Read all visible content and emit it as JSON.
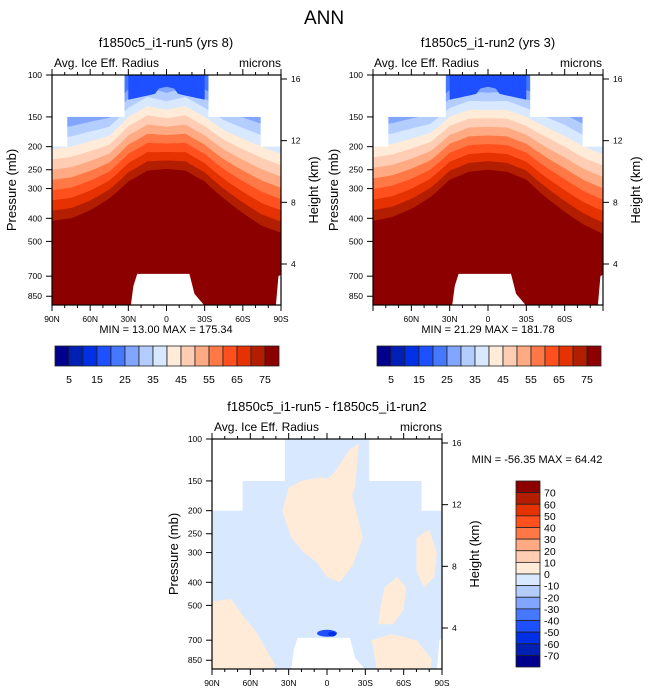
{
  "figure_title": "ANN",
  "chart_data": [
    {
      "type": "heatmap",
      "id": "run5",
      "title": "f1850c5_i1-run5 (yrs 8)",
      "left_label": "Avg. Ice Eff. Radius",
      "right_label": "microns",
      "ylabel": "Pressure (mb)",
      "ylabel_right": "Height (km)",
      "xlabel": "",
      "x_ticks": [
        "90N",
        "60N",
        "30N",
        "0",
        "30S",
        "60S",
        "90S"
      ],
      "x_tick_values": [
        90,
        60,
        30,
        0,
        -30,
        -60,
        -90
      ],
      "y_ticks": [
        100,
        150,
        200,
        250,
        300,
        400,
        500,
        700,
        850
      ],
      "y_ticks_right": [
        16,
        12,
        8,
        4
      ],
      "ylim": [
        1000,
        100
      ],
      "xlim": [
        90,
        -90
      ],
      "stats": "MIN =  13.00  MAX = 175.34",
      "min": 13.0,
      "max": 175.34,
      "colorbar": "absolute",
      "field": {
        "lat": [
          90,
          75,
          60,
          45,
          30,
          15,
          0,
          -15,
          -30,
          -45,
          -60,
          -75,
          -90
        ],
        "level_pressure_for_value_40": [
          205,
          200,
          190,
          180,
          150,
          135,
          140,
          135,
          150,
          170,
          185,
          200,
          215
        ],
        "level_pressure_for_value_75": [
          410,
          400,
          370,
          330,
          280,
          252,
          248,
          252,
          280,
          330,
          380,
          430,
          460
        ],
        "top_missing_above_mb": {
          "polar": 200,
          "midlat": 150,
          "tropics_edge_lat": [
            33,
            -33
          ]
        },
        "surface_missing_region_lat": [
          28,
          -38
        ],
        "surface_missing_top_mb": 665
      }
    },
    {
      "type": "heatmap",
      "id": "run2",
      "title": "f1850c5_i1-run2 (yrs 3)",
      "left_label": "Avg. Ice Eff. Radius",
      "right_label": "microns",
      "ylabel": "Pressure (mb)",
      "ylabel_right": "Height (km)",
      "xlabel": "",
      "x_ticks": [
        "60N",
        "30N",
        "0",
        "30S",
        "60S"
      ],
      "x_tick_values": [
        60,
        30,
        0,
        -30,
        -60
      ],
      "y_ticks": [
        100,
        150,
        200,
        250,
        300,
        400,
        500,
        700,
        850
      ],
      "y_ticks_right": [
        16,
        12,
        8,
        4
      ],
      "ylim": [
        1000,
        100
      ],
      "xlim": [
        90,
        -90
      ],
      "stats": "MIN =  21.29  MAX = 181.78",
      "min": 21.29,
      "max": 181.78,
      "colorbar": "absolute",
      "field": {
        "lat": [
          90,
          75,
          60,
          45,
          30,
          15,
          0,
          -15,
          -30,
          -45,
          -60,
          -75,
          -90
        ],
        "level_pressure_for_value_40": [
          200,
          195,
          185,
          175,
          150,
          140,
          140,
          140,
          150,
          165,
          180,
          200,
          215
        ],
        "level_pressure_for_value_75": [
          410,
          395,
          365,
          325,
          275,
          255,
          250,
          255,
          275,
          325,
          375,
          425,
          465
        ],
        "top_missing_above_mb": {
          "polar": 200,
          "midlat": 150,
          "tropics_edge_lat": [
            33,
            -33
          ]
        },
        "surface_missing_region_lat": [
          28,
          -38
        ],
        "surface_missing_top_mb": 665
      }
    },
    {
      "type": "heatmap",
      "id": "diff",
      "title": "f1850c5_i1-run5 - f1850c5_i1-run2",
      "left_label": "Avg. Ice Eff. Radius",
      "right_label": "microns",
      "ylabel": "Pressure (mb)",
      "ylabel_right": "Height (km)",
      "xlabel": "",
      "x_ticks": [
        "90N",
        "60N",
        "30N",
        "0",
        "30S",
        "60S",
        "90S"
      ],
      "x_tick_values": [
        90,
        60,
        30,
        0,
        -30,
        -60,
        -90
      ],
      "y_ticks": [
        100,
        150,
        200,
        250,
        300,
        400,
        500,
        700,
        850
      ],
      "y_ticks_right": [
        16,
        12,
        8,
        4
      ],
      "ylim": [
        1000,
        100
      ],
      "xlim": [
        90,
        -90
      ],
      "stats": "MIN = -56.35  MAX =  64.42",
      "min": -56.35,
      "max": 64.42,
      "colorbar": "difference",
      "field": {
        "dominant_values": [
          -10,
          0,
          10
        ],
        "note": "mostly within -10..10; small negative pocket (-40..-50) near 0 lat at ~660 mb"
      }
    }
  ],
  "colorbars": {
    "absolute": {
      "orientation": "horizontal",
      "levels": [
        5,
        10,
        15,
        20,
        25,
        30,
        35,
        40,
        45,
        50,
        55,
        60,
        65,
        70,
        75
      ],
      "labels": [
        "5",
        "15",
        "25",
        "35",
        "45",
        "55",
        "65",
        "75"
      ],
      "colors": [
        "#00008c",
        "#0020b4",
        "#0030e6",
        "#1e50ff",
        "#4678ff",
        "#82a5ff",
        "#b4cdff",
        "#d7e8ff",
        "#ffebd7",
        "#ffcdb4",
        "#ffaa82",
        "#ff7846",
        "#ff501e",
        "#e63200",
        "#b41e00",
        "#8c0000"
      ]
    },
    "difference": {
      "orientation": "vertical",
      "levels": [
        -70,
        -60,
        -50,
        -40,
        -30,
        -20,
        -10,
        0,
        10,
        20,
        30,
        40,
        50,
        60,
        70
      ],
      "labels": [
        "70",
        "60",
        "50",
        "40",
        "30",
        "20",
        "10",
        "0",
        "-10",
        "-20",
        "-30",
        "-40",
        "-50",
        "-60",
        "-70"
      ],
      "colors": [
        "#00008c",
        "#0020b4",
        "#0030e6",
        "#1e50ff",
        "#4678ff",
        "#82a5ff",
        "#b4cdff",
        "#d7e8ff",
        "#ffebd7",
        "#ffcdb4",
        "#ffaa82",
        "#ff7846",
        "#ff501e",
        "#e63200",
        "#b41e00",
        "#8c0000"
      ]
    }
  }
}
